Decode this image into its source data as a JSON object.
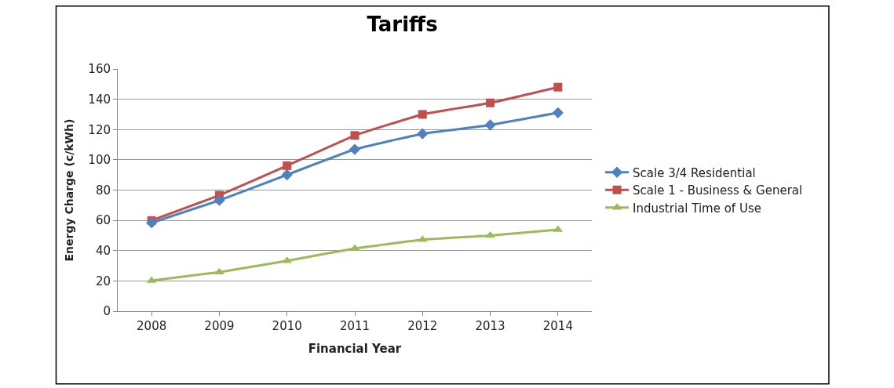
{
  "chart_data": {
    "type": "line",
    "title": "Tariffs",
    "xlabel": "Financial Year",
    "ylabel": "Energy Charge (c/kWh)",
    "categories": [
      "2008",
      "2009",
      "2010",
      "2011",
      "2012",
      "2013",
      "2014"
    ],
    "series": [
      {
        "name": "Scale 3/4 Residential",
        "color": "#4f81bd",
        "marker": "diamond",
        "values": [
          58.4,
          73.2,
          90.1,
          106.9,
          117.2,
          123,
          131.1
        ]
      },
      {
        "name": "Scale 1 - Business & General",
        "color": "#c0504d",
        "marker": "square",
        "values": [
          59.9,
          76.6,
          96.1,
          116.1,
          130,
          137.6,
          148
        ]
      },
      {
        "name": "Industrial Time of Use",
        "color": "#9bbb59",
        "marker": "triangle",
        "values": [
          20.2,
          25.8,
          33.3,
          41.4,
          47.2,
          50,
          53.9
        ]
      }
    ],
    "ylim": [
      0,
      160
    ],
    "yticks": [
      0,
      20,
      40,
      60,
      80,
      100,
      120,
      140,
      160
    ],
    "grid": "y",
    "legend": "right"
  }
}
